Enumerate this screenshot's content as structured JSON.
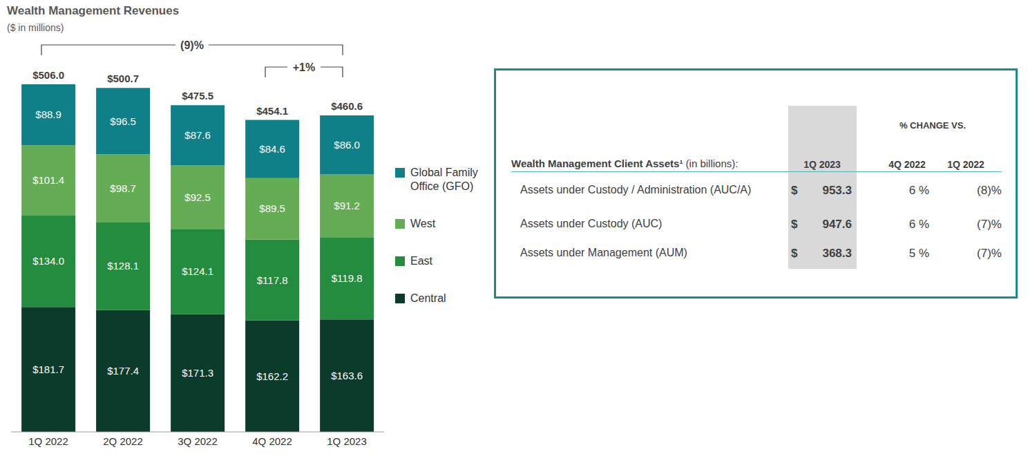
{
  "chart_data": {
    "type": "bar",
    "title": "Wealth Management Revenues",
    "subtitle": "($ in millions)",
    "categories": [
      "1Q 2022",
      "2Q 2022",
      "3Q 2022",
      "4Q 2022",
      "1Q 2023"
    ],
    "stacked": true,
    "data_labels": true,
    "tick_labels": "x",
    "ylim": [
      0,
      510
    ],
    "series": [
      {
        "name": "Central",
        "color": "#0b3b2b",
        "values": [
          181.7,
          177.4,
          171.3,
          162.2,
          163.6
        ],
        "value_labels": [
          "$181.7",
          "$177.4",
          "$171.3",
          "$162.2",
          "$163.6"
        ]
      },
      {
        "name": "East",
        "color": "#238c3f",
        "values": [
          134.0,
          128.1,
          124.1,
          117.8,
          119.8
        ],
        "value_labels": [
          "$134.0",
          "$128.1",
          "$124.1",
          "$117.8",
          "$119.8"
        ]
      },
      {
        "name": "West",
        "color": "#64ad55",
        "values": [
          101.4,
          98.7,
          92.5,
          89.5,
          91.2
        ],
        "value_labels": [
          "$101.4",
          "$98.7",
          "$92.5",
          "$89.5",
          "$91.2"
        ]
      },
      {
        "name": "Global Family Office (GFO)",
        "color": "#0f8088",
        "values": [
          88.9,
          96.5,
          87.6,
          84.6,
          86.0
        ],
        "value_labels": [
          "$88.9",
          "$96.5",
          "$87.6",
          "$84.6",
          "$86.0"
        ]
      }
    ],
    "total_labels": [
      "$506.0",
      "$500.7",
      "$475.5",
      "$454.1",
      "$460.6"
    ],
    "annotations": [
      {
        "text": "(9)%",
        "from": "1Q 2022",
        "to": "1Q 2023"
      },
      {
        "text": "+1%",
        "from": "4Q 2022",
        "to": "1Q 2023"
      }
    ]
  },
  "table": {
    "group_header": "% CHANGE VS.",
    "header": {
      "label": "Wealth Management Client Assets¹",
      "unit": "(in billions):",
      "columns": [
        "1Q 2023",
        "4Q 2022",
        "1Q 2022"
      ]
    },
    "rows": [
      {
        "label": "Assets under Custody / Administration (AUC/A)",
        "currency": "$",
        "cells": [
          "953.3",
          "6 %",
          "(8)%"
        ]
      },
      {
        "label": "Assets under Custody (AUC)",
        "currency": "$",
        "cells": [
          "947.6",
          "6 %",
          "(7)%"
        ]
      },
      {
        "label": "Assets under Management (AUM)",
        "currency": "$",
        "cells": [
          "368.3",
          "5 %",
          "(7)%"
        ]
      }
    ]
  }
}
